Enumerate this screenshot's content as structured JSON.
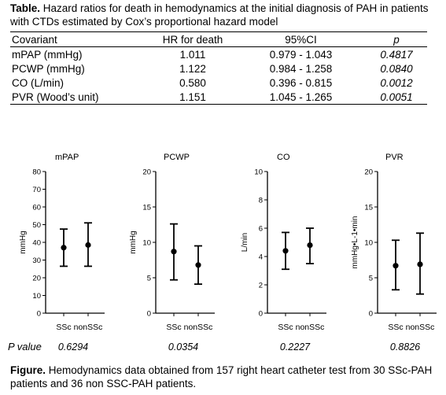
{
  "table": {
    "caption_bold": "Table.",
    "caption_text": " Hazard ratios for death in hemodynamics at the initial diagnosis of PAH in patients with CTDs estimated by Cox’s proportional hazard model",
    "headers": [
      "Covariant",
      "HR for death",
      "95%CI",
      "p"
    ],
    "rows": [
      [
        "mPAP (mmHg)",
        "1.011",
        "0.979 - 1.043",
        "0.4817"
      ],
      [
        "PCWP (mmHg)",
        "1.122",
        "0.984 - 1.258",
        "0.0840"
      ],
      [
        "CO (L/min)",
        "0.580",
        "0.396 - 0.815",
        "0.0012"
      ],
      [
        "PVR (Wood’s unit)",
        "1.151",
        "1.045 - 1.265",
        "0.0051"
      ]
    ]
  },
  "pvalue_label": "P value",
  "figure_caption_bold": "Figure.",
  "figure_caption_text": " Hemodynamics data obtained from 157 right heart catheter test from 30 SSc-PAH patients and 36 non SSC-PAH patients.",
  "chart_data": [
    {
      "type": "scatter",
      "title": "mPAP",
      "ylabel": "mmHg",
      "ylim": [
        0,
        80
      ],
      "yticks": [
        0,
        10,
        20,
        30,
        40,
        50,
        60,
        70,
        80
      ],
      "categories": [
        "SSc",
        "nonSSc"
      ],
      "mean": [
        37,
        38.5
      ],
      "err_low": [
        26.5,
        26.5
      ],
      "err_high": [
        47.5,
        51
      ],
      "p_value": "0.6294"
    },
    {
      "type": "scatter",
      "title": "PCWP",
      "ylabel": "mmHg",
      "ylim": [
        0,
        20
      ],
      "yticks": [
        0,
        5,
        10,
        15,
        20
      ],
      "categories": [
        "SSc",
        "nonSSc"
      ],
      "mean": [
        8.7,
        6.8
      ],
      "err_low": [
        4.7,
        4.1
      ],
      "err_high": [
        12.6,
        9.5
      ],
      "p_value": "0.0354"
    },
    {
      "type": "scatter",
      "title": "CO",
      "ylabel": "L/min",
      "ylim": [
        0,
        10
      ],
      "yticks": [
        0,
        2,
        4,
        6,
        8,
        10
      ],
      "categories": [
        "SSc",
        "nonSSc"
      ],
      "mean": [
        4.4,
        4.8
      ],
      "err_low": [
        3.1,
        3.5
      ],
      "err_high": [
        5.7,
        6.0
      ],
      "p_value": "0.2227"
    },
    {
      "type": "scatter",
      "title": "PVR",
      "ylabel": "mmHg•L-1•min",
      "ylim": [
        0,
        20
      ],
      "yticks": [
        0,
        5,
        10,
        15,
        20
      ],
      "categories": [
        "SSc",
        "nonSSc"
      ],
      "mean": [
        6.7,
        6.9
      ],
      "err_low": [
        3.3,
        2.7
      ],
      "err_high": [
        10.3,
        11.3
      ],
      "p_value": "0.8826"
    }
  ]
}
